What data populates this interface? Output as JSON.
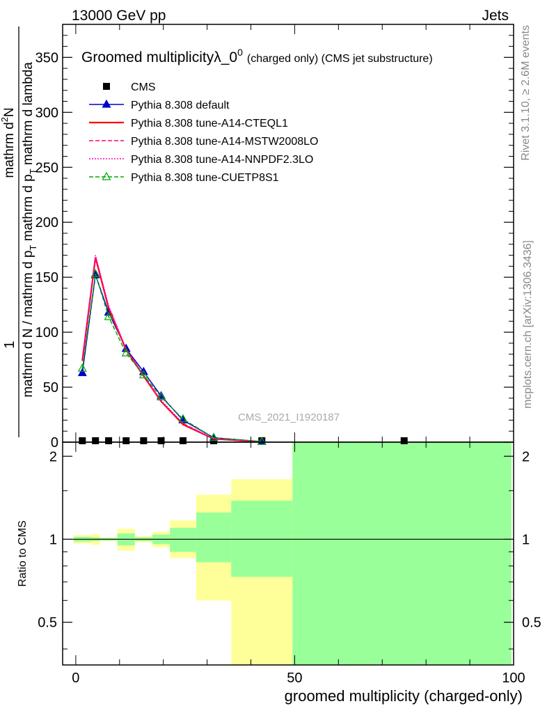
{
  "header": {
    "left": "13000 GeV pp",
    "right": "Jets"
  },
  "side_text": {
    "rivet": "Rivet 3.1.10, ≥ 2.6M events",
    "mcplots": "mcplots.cern.ch [arXiv:1306.3436]"
  },
  "watermark": "CMS_2021_I1920187",
  "chart_data": [
    {
      "type": "line",
      "title": "Groomed multiplicityλ_0",
      "title_sup": "0",
      "title_suffix": "(charged only) (CMS jet substructure)",
      "ylabel": {
        "one": "1",
        "numerator": "mathrm d",
        "numerator_sup": "2",
        "numerator_tail": "N",
        "denominator": "mathrm d N / mathrm d p",
        "denominator_sub": "T",
        "denominator_tail": " mathrm d p",
        "denominator_sub2": "T",
        "denominator_tail2": " mathrm d lambda"
      },
      "xlim": [
        -3,
        100
      ],
      "ylim": [
        0,
        380
      ],
      "yticks": [
        0,
        50,
        100,
        150,
        200,
        250,
        300,
        350
      ],
      "x": [
        1.5,
        4.5,
        7.5,
        11.5,
        15.5,
        19.5,
        24.5,
        31.5,
        42.5,
        75
      ],
      "series": [
        {
          "name": "CMS",
          "color": "#000000",
          "marker": "square",
          "values": [
            0.8,
            0.8,
            0.8,
            0.8,
            0.8,
            0.8,
            0.8,
            0.5,
            0.5,
            0.5
          ]
        },
        {
          "name": "Pythia 8.308 default",
          "color": "#0000cc",
          "marker": "triangle",
          "dash": "",
          "values": [
            63,
            152,
            118,
            85,
            64,
            42,
            20,
            4,
            0.5,
            0
          ]
        },
        {
          "name": "Pythia 8.308 tune-A14-CTEQL1",
          "color": "#ff0000",
          "dash": "",
          "values": [
            74,
            168,
            122,
            84,
            60,
            37,
            16,
            3,
            0.3,
            0
          ]
        },
        {
          "name": "Pythia 8.308 tune-A14-MSTW2008LO",
          "color": "#ff0077",
          "dash": "6,3",
          "values": [
            75,
            168,
            123,
            84,
            60,
            37,
            17,
            3,
            0.3,
            0
          ]
        },
        {
          "name": "Pythia 8.308 tune-A14-NNPDF2.3LO",
          "color": "#ff00aa",
          "dash": "2,2",
          "values": [
            76,
            170,
            124,
            85,
            61,
            38,
            17,
            3,
            0.3,
            0
          ]
        },
        {
          "name": "Pythia 8.308 tune-CUETP8S1",
          "color": "#00aa00",
          "marker": "open-triangle",
          "dash": "6,3",
          "values": [
            67,
            153,
            114,
            81,
            61,
            41,
            21,
            4,
            0.5,
            0
          ]
        }
      ]
    },
    {
      "type": "area",
      "ylabel": "Ratio to CMS",
      "xlabel": "groomed multiplicity (charged-only)",
      "xlim": [
        -3,
        100
      ],
      "ylim": [
        0.35,
        2.25
      ],
      "yticks": [
        0.5,
        1,
        2
      ],
      "xticks": [
        0,
        50,
        100
      ],
      "reference_line": 1,
      "bins": [
        {
          "x0": -0.5,
          "x1": 3.5,
          "stat": [
            0.98,
            1.02
          ],
          "total": [
            0.965,
            1.035
          ]
        },
        {
          "x0": 3.5,
          "x1": 5.5,
          "stat": [
            0.985,
            1.015
          ],
          "total": [
            0.955,
            1.045
          ]
        },
        {
          "x0": 5.5,
          "x1": 9.5,
          "stat": [
            0.99,
            1.01
          ],
          "total": [
            0.985,
            1.015
          ]
        },
        {
          "x0": 9.5,
          "x1": 13.5,
          "stat": [
            0.95,
            1.05
          ],
          "total": [
            0.91,
            1.09
          ]
        },
        {
          "x0": 13.5,
          "x1": 17.5,
          "stat": [
            0.985,
            1.015
          ],
          "total": [
            0.975,
            1.025
          ]
        },
        {
          "x0": 17.5,
          "x1": 21.5,
          "stat": [
            0.96,
            1.04
          ],
          "total": [
            0.935,
            1.065
          ]
        },
        {
          "x0": 21.5,
          "x1": 27.5,
          "stat": [
            0.9,
            1.1
          ],
          "total": [
            0.855,
            1.17
          ]
        },
        {
          "x0": 27.5,
          "x1": 35.5,
          "stat": [
            0.825,
            1.25
          ],
          "total": [
            0.6,
            1.45
          ]
        },
        {
          "x0": 35.5,
          "x1": 49.5,
          "stat": [
            0.73,
            1.38
          ],
          "total": [
            0.35,
            1.65
          ]
        },
        {
          "x0": 49.5,
          "x1": 99.5,
          "stat": [
            0.35,
            2.25
          ],
          "total": [
            0.35,
            2.25
          ]
        }
      ],
      "colors": {
        "stat": "#99ff99",
        "total": "#ffff99"
      }
    }
  ]
}
